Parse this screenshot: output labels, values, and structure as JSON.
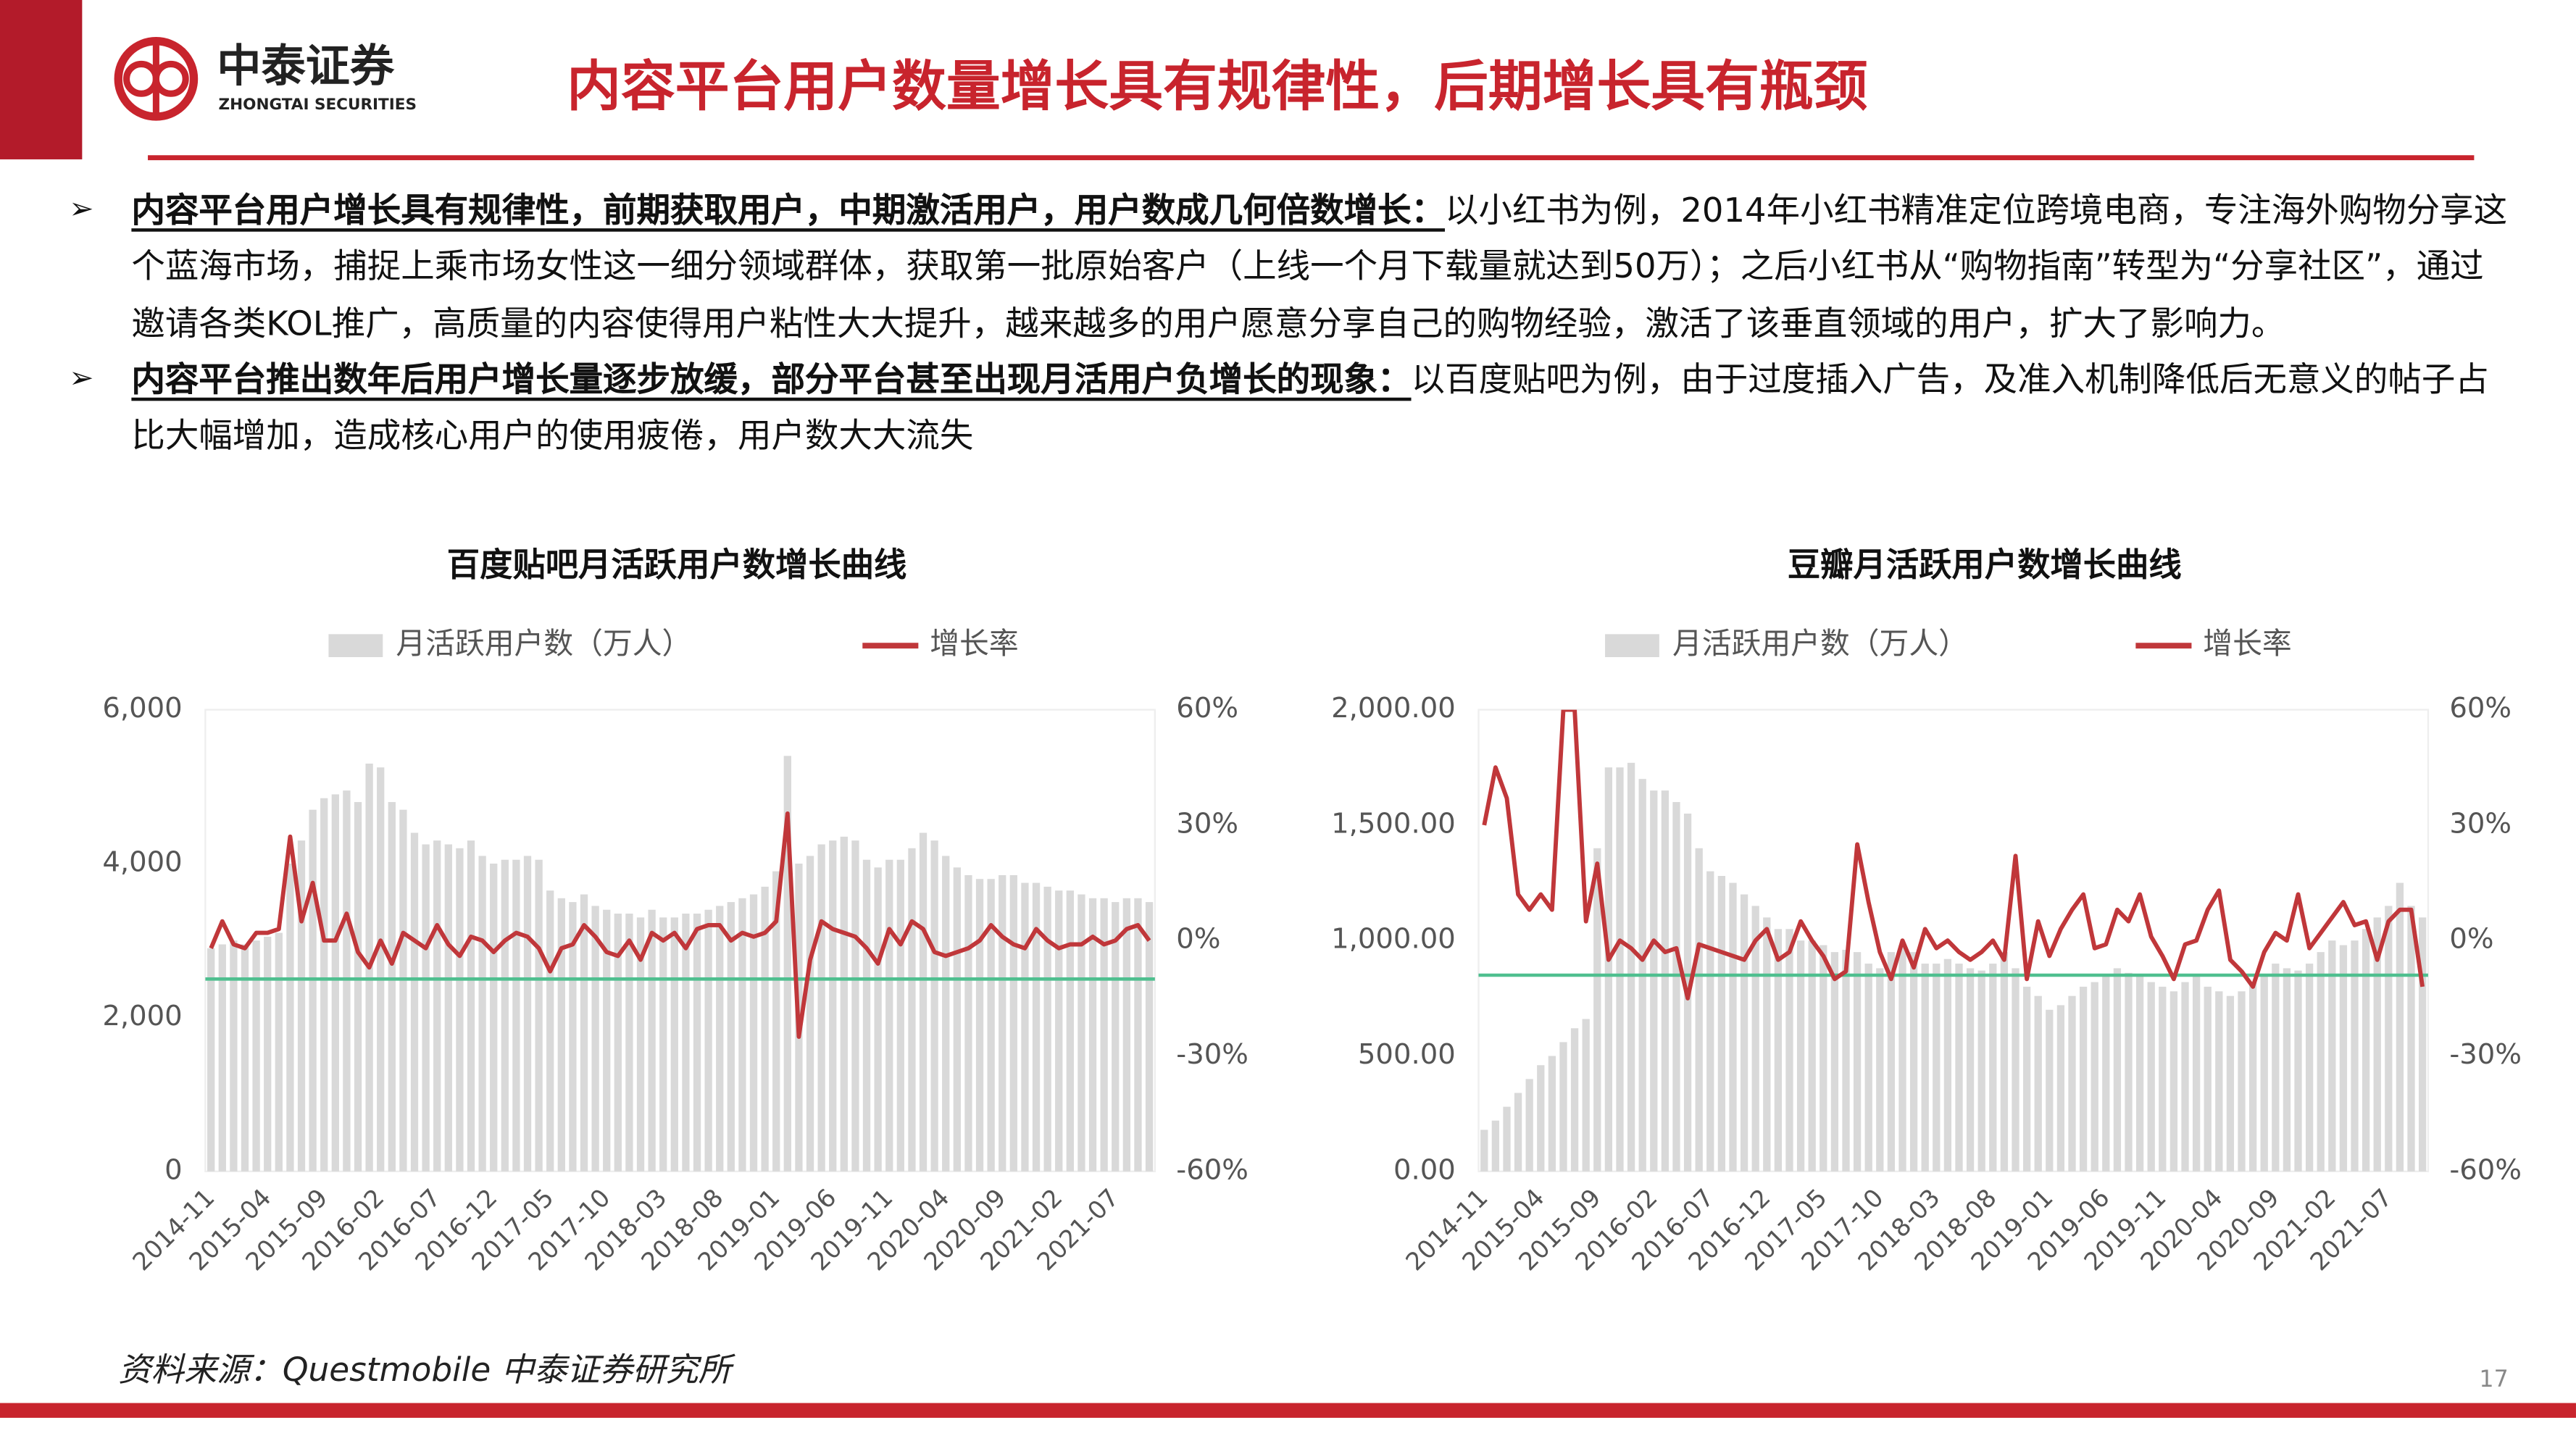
{
  "header": {
    "logo_cn": "中泰证券",
    "logo_en": "ZHONGTAI SECURITIES",
    "title": "内容平台用户数量增长具有规律性，后期增长具有瓶颈"
  },
  "bullets": [
    {
      "lead": "内容平台用户增长具有规律性，前期获取用户，中期激活用户，用户数成几何倍数增长：",
      "text": "以小红书为例，2014年小红书精准定位跨境电商，专注海外购物分享这个蓝海市场，捕捉上乘市场女性这一细分领域群体，获取第一批原始客户（上线一个月下载量就达到50万）；之后小红书从“购物指南”转型为“分享社区”，通过邀请各类KOL推广，高质量的内容使得用户粘性大大提升，越来越多的用户愿意分享自己的购物经验，激活了该垂直领域的用户，扩大了影响力。"
    },
    {
      "lead": "内容平台推出数年后用户增长量逐步放缓，部分平台甚至出现月活用户负增长的现象：",
      "text": "以百度贴吧为例，由于过度插入广告，及准入机制降低后无意义的帖子占比大幅增加，造成核心用户的使用疲倦，用户数大大流失"
    }
  ],
  "chart_data": [
    {
      "type": "bar",
      "title": "百度贴吧月活跃用户数增长曲线",
      "legend": "top",
      "categories": [
        "2014-11",
        null,
        null,
        null,
        null,
        "2015-04",
        null,
        null,
        null,
        null,
        "2015-09",
        null,
        null,
        null,
        null,
        "2016-02",
        null,
        null,
        null,
        null,
        "2016-07",
        null,
        null,
        null,
        null,
        "2016-12",
        null,
        null,
        null,
        null,
        "2017-05",
        null,
        null,
        null,
        null,
        "2017-10",
        null,
        null,
        null,
        null,
        "2018-03",
        null,
        null,
        null,
        null,
        "2018-08",
        null,
        null,
        null,
        null,
        "2019-01",
        null,
        null,
        null,
        null,
        "2019-06",
        null,
        null,
        null,
        null,
        "2019-11",
        null,
        null,
        null,
        null,
        "2020-04",
        null,
        null,
        null,
        null,
        "2020-09",
        null,
        null,
        null,
        null,
        "2021-02",
        null,
        null,
        null,
        null,
        "2021-07",
        null,
        null,
        null
      ],
      "series": [
        {
          "name": "月活跃用户数（万人）",
          "type": "bar",
          "color": "#d9d9d9",
          "values": [
            2900,
            2950,
            3000,
            2950,
            3000,
            3050,
            3100,
            4000,
            4300,
            4700,
            4850,
            4900,
            4950,
            4800,
            5300,
            5250,
            4800,
            4700,
            4400,
            4250,
            4300,
            4250,
            4200,
            4300,
            4100,
            4000,
            4050,
            4050,
            4100,
            4050,
            3650,
            3550,
            3500,
            3600,
            3450,
            3400,
            3350,
            3350,
            3300,
            3400,
            3300,
            3300,
            3350,
            3350,
            3400,
            3450,
            3500,
            3550,
            3600,
            3700,
            3900,
            5400,
            4000,
            4100,
            4250,
            4300,
            4350,
            4300,
            4050,
            3950,
            4050,
            4050,
            4200,
            4400,
            4300,
            4100,
            3950,
            3850,
            3800,
            3800,
            3850,
            3850,
            3750,
            3750,
            3700,
            3650,
            3650,
            3600,
            3550,
            3550,
            3500,
            3550,
            3550,
            3500
          ]
        },
        {
          "name": "增长率",
          "type": "line",
          "axis": "y2",
          "color": "#c0373a",
          "values": [
            -2,
            5,
            -1,
            -2,
            2,
            2,
            3,
            27,
            5,
            15,
            0,
            0,
            7,
            -3,
            -7,
            0,
            -6,
            2,
            0,
            -2,
            4,
            -1,
            -4,
            1,
            0,
            -3,
            0,
            2,
            1,
            -2,
            -8,
            -2,
            -1,
            4,
            1,
            -3,
            -4,
            0,
            -5,
            2,
            0,
            2,
            -2,
            3,
            4,
            4,
            0,
            2,
            1,
            2,
            5,
            33,
            -25,
            -5,
            5,
            3,
            2,
            1,
            -2,
            -6,
            3,
            -1,
            5,
            3,
            -3,
            -4,
            -3,
            -2,
            0,
            4,
            1,
            -1,
            -2,
            3,
            0,
            -2,
            -1,
            -1,
            1,
            -1,
            0,
            3,
            4,
            0
          ]
        }
      ],
      "reference_line": {
        "value": -10,
        "axis": "y2",
        "color": "#4fbf8f"
      },
      "ylim": [
        0,
        6000
      ],
      "yticks": [
        0,
        {
          "value": 2000,
          "label": "2,000"
        },
        {
          "value": 4000,
          "label": "4,000"
        },
        {
          "value": 6000,
          "label": "6,000"
        }
      ],
      "y2lim": [
        -60,
        60
      ],
      "y2ticks": [
        {
          "value": -60,
          "label": "-60%"
        },
        {
          "value": -30,
          "label": "-30%"
        },
        {
          "value": 0,
          "label": "0%"
        },
        {
          "value": 30,
          "label": "30%"
        },
        {
          "value": 60,
          "label": "60%"
        }
      ]
    },
    {
      "type": "bar",
      "title": "豆瓣月活跃用户数增长曲线",
      "legend": "top",
      "categories": [
        "2014-11",
        null,
        null,
        null,
        null,
        "2015-04",
        null,
        null,
        null,
        null,
        "2015-09",
        null,
        null,
        null,
        null,
        "2016-02",
        null,
        null,
        null,
        null,
        "2016-07",
        null,
        null,
        null,
        null,
        "2016-12",
        null,
        null,
        null,
        null,
        "2017-05",
        null,
        null,
        null,
        null,
        "2017-10",
        null,
        null,
        null,
        null,
        "2018-03",
        null,
        null,
        null,
        null,
        "2018-08",
        null,
        null,
        null,
        null,
        "2019-01",
        null,
        null,
        null,
        null,
        "2019-06",
        null,
        null,
        null,
        null,
        "2019-11",
        null,
        null,
        null,
        null,
        "2020-04",
        null,
        null,
        null,
        null,
        "2020-09",
        null,
        null,
        null,
        null,
        "2021-02",
        null,
        null,
        null,
        null,
        "2021-07",
        null,
        null,
        null
      ],
      "series": [
        {
          "name": "月活跃用户数（万人）",
          "type": "bar",
          "color": "#d9d9d9",
          "values": [
            180,
            220,
            280,
            340,
            400,
            460,
            500,
            560,
            620,
            660,
            1400,
            1750,
            1750,
            1770,
            1700,
            1650,
            1650,
            1600,
            1550,
            1400,
            1300,
            1280,
            1250,
            1200,
            1150,
            1100,
            1050,
            1050,
            1000,
            1000,
            980,
            950,
            960,
            950,
            900,
            880,
            950,
            980,
            950,
            900,
            900,
            920,
            900,
            880,
            870,
            900,
            950,
            880,
            800,
            760,
            700,
            720,
            760,
            800,
            820,
            850,
            880,
            860,
            850,
            820,
            800,
            780,
            820,
            850,
            800,
            780,
            760,
            780,
            820,
            850,
            900,
            880,
            870,
            900,
            950,
            1000,
            980,
            1000,
            1050,
            1100,
            1150,
            1250,
            1150,
            1100
          ]
        },
        {
          "name": "增长率",
          "type": "line",
          "axis": "y2",
          "color": "#c0373a",
          "values": [
            30,
            45,
            37,
            12,
            8,
            12,
            8,
            60,
            60,
            5,
            20,
            -5,
            0,
            -2,
            -5,
            0,
            -3,
            -2,
            -15,
            -1,
            -2,
            -3,
            -4,
            -5,
            0,
            3,
            -5,
            -3,
            5,
            0,
            -4,
            -10,
            -8,
            25,
            10,
            -3,
            -10,
            0,
            -7,
            3,
            -2,
            0,
            -3,
            -5,
            -3,
            0,
            -5,
            22,
            -10,
            5,
            -4,
            3,
            8,
            12,
            -2,
            -1,
            8,
            5,
            12,
            1,
            -4,
            -10,
            -1,
            0,
            8,
            13,
            -5,
            -8,
            -12,
            -3,
            2,
            0,
            12,
            -2,
            2,
            6,
            10,
            4,
            5,
            -5,
            5,
            8,
            8,
            -12
          ]
        }
      ],
      "reference_line": {
        "value": -9,
        "axis": "y2",
        "color": "#4fbf8f"
      },
      "ylim": [
        0,
        2000
      ],
      "yticks": [
        {
          "value": 0,
          "label": "0.00"
        },
        {
          "value": 500,
          "label": "500.00"
        },
        {
          "value": 1000,
          "label": "1,000.00"
        },
        {
          "value": 1500,
          "label": "1,500.00"
        },
        {
          "value": 2000,
          "label": "2,000.00"
        }
      ],
      "y2lim": [
        -60,
        60
      ],
      "y2ticks": [
        {
          "value": -60,
          "label": "-60%"
        },
        {
          "value": -30,
          "label": "-30%"
        },
        {
          "value": 0,
          "label": "0%"
        },
        {
          "value": 30,
          "label": "30%"
        },
        {
          "value": 60,
          "label": "60%"
        }
      ]
    }
  ],
  "source": "资料来源：Questmobile 中泰证券研究所",
  "page_number": "17"
}
